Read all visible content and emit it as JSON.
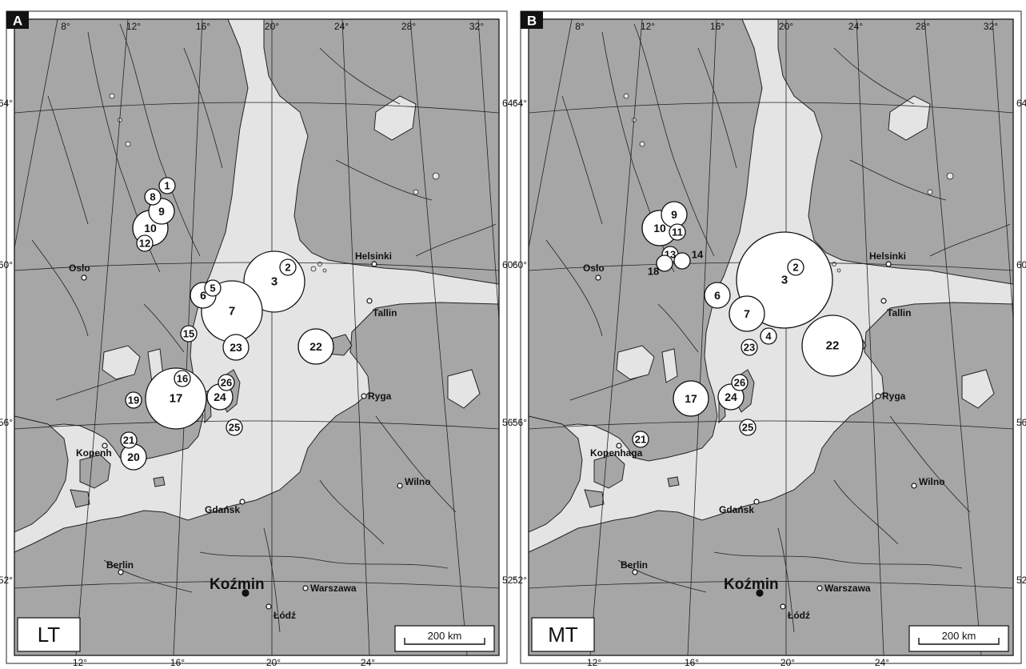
{
  "lon_ticks_top": [
    "8°",
    "12°",
    "16°",
    "20°",
    "24°",
    "28°",
    "32°"
  ],
  "lon_ticks_bottom": [
    "12°",
    "16°",
    "20°",
    "24°"
  ],
  "lat_ticks": [
    "64°",
    "60°",
    "56°",
    "52°"
  ],
  "scale_label": "200 km",
  "panels": [
    {
      "letter": "A",
      "period": "LT",
      "cities": {
        "oslo": "Oslo",
        "helsinki": "Helsinki",
        "tallin": "Tallin",
        "ryga": "Ryga",
        "kopenhaga": "Kopenh",
        "gdansk": "Gdańsk",
        "wilno": "Wilno",
        "berlin": "Berlin",
        "warszawa": "Warszawa",
        "lodz": "Łódź",
        "kozmin": "Koźmin"
      },
      "sites": [
        {
          "label": "1",
          "size": "s"
        },
        {
          "label": "8",
          "size": "s"
        },
        {
          "label": "9",
          "size": "m"
        },
        {
          "label": "10",
          "size": "l"
        },
        {
          "label": "12",
          "size": "s"
        },
        {
          "label": "2",
          "size": "s"
        },
        {
          "label": "3",
          "size": "xl"
        },
        {
          "label": "5",
          "size": "s"
        },
        {
          "label": "6",
          "size": "m"
        },
        {
          "label": "7",
          "size": "xl"
        },
        {
          "label": "15",
          "size": "s"
        },
        {
          "label": "23",
          "size": "m"
        },
        {
          "label": "22",
          "size": "l"
        },
        {
          "label": "16",
          "size": "s"
        },
        {
          "label": "17",
          "size": "xl"
        },
        {
          "label": "26",
          "size": "s"
        },
        {
          "label": "24",
          "size": "m"
        },
        {
          "label": "19",
          "size": "s"
        },
        {
          "label": "25",
          "size": "s"
        },
        {
          "label": "21",
          "size": "s"
        },
        {
          "label": "20",
          "size": "m"
        }
      ]
    },
    {
      "letter": "B",
      "period": "MT",
      "cities": {
        "oslo": "Oslo",
        "helsinki": "Helsinki",
        "tallin": "Tallin",
        "ryga": "Ryga",
        "kopenhaga": "Kopenhaga",
        "gdansk": "Gdańsk",
        "wilno": "Wilno",
        "berlin": "Berlin",
        "warszawa": "Warszawa",
        "lodz": "Łódź",
        "kozmin": "Koźmin"
      },
      "sites": [
        {
          "label": "9",
          "size": "m"
        },
        {
          "label": "10",
          "size": "l"
        },
        {
          "label": "11",
          "size": "s"
        },
        {
          "label": "13",
          "size": "s"
        },
        {
          "label": "14",
          "size": "s"
        },
        {
          "label": "18",
          "size": "s"
        },
        {
          "label": "2",
          "size": "s"
        },
        {
          "label": "3",
          "size": "xxl"
        },
        {
          "label": "6",
          "size": "m"
        },
        {
          "label": "7",
          "size": "l"
        },
        {
          "label": "4",
          "size": "s"
        },
        {
          "label": "23",
          "size": "s"
        },
        {
          "label": "22",
          "size": "xl"
        },
        {
          "label": "17",
          "size": "l"
        },
        {
          "label": "26",
          "size": "s"
        },
        {
          "label": "24",
          "size": "m"
        },
        {
          "label": "25",
          "size": "s"
        },
        {
          "label": "21",
          "size": "s"
        }
      ]
    }
  ],
  "colors": {
    "land": "#a6a6a6",
    "sea": "#e4e4e4",
    "outline": "#222222",
    "circle": "#ffffff"
  }
}
